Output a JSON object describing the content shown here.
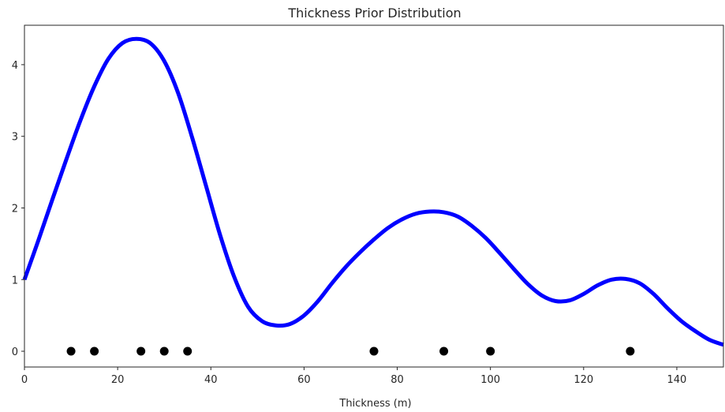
{
  "chart_data": {
    "type": "line",
    "title": "Thickness Prior Distribution",
    "xlabel": "Thickness (m)",
    "ylabel": "",
    "xlim": [
      0,
      150
    ],
    "ylim": [
      -0.22,
      4.55
    ],
    "xticks": [
      0,
      20,
      40,
      60,
      80,
      100,
      120,
      140
    ],
    "yticks": [
      0,
      1,
      2,
      3,
      4
    ],
    "grid": false,
    "series": [
      {
        "kind": "line",
        "color": "#0000ff",
        "x": [
          0,
          3,
          6,
          9,
          12,
          15,
          18,
          21,
          24,
          27,
          30,
          33,
          36,
          39,
          42,
          45,
          48,
          51,
          54,
          57,
          60,
          63,
          66,
          69,
          72,
          75,
          78,
          81,
          84,
          87,
          90,
          93,
          96,
          99,
          102,
          105,
          108,
          111,
          114,
          117,
          120,
          123,
          126,
          129,
          132,
          135,
          138,
          141,
          144,
          147,
          150
        ],
        "y": [
          1.0,
          1.55,
          2.12,
          2.68,
          3.22,
          3.7,
          4.08,
          4.3,
          4.36,
          4.3,
          4.05,
          3.6,
          2.98,
          2.3,
          1.62,
          1.04,
          0.62,
          0.42,
          0.36,
          0.38,
          0.5,
          0.7,
          0.95,
          1.18,
          1.38,
          1.56,
          1.72,
          1.84,
          1.92,
          1.95,
          1.94,
          1.88,
          1.75,
          1.58,
          1.37,
          1.15,
          0.94,
          0.78,
          0.7,
          0.71,
          0.8,
          0.92,
          1.0,
          1.01,
          0.95,
          0.8,
          0.6,
          0.42,
          0.28,
          0.16,
          0.09
        ]
      },
      {
        "kind": "scatter",
        "color": "#000000",
        "x": [
          10,
          15,
          25,
          30,
          35,
          75,
          90,
          100,
          130
        ],
        "y": [
          0,
          0,
          0,
          0,
          0,
          0,
          0,
          0,
          0
        ]
      }
    ]
  }
}
